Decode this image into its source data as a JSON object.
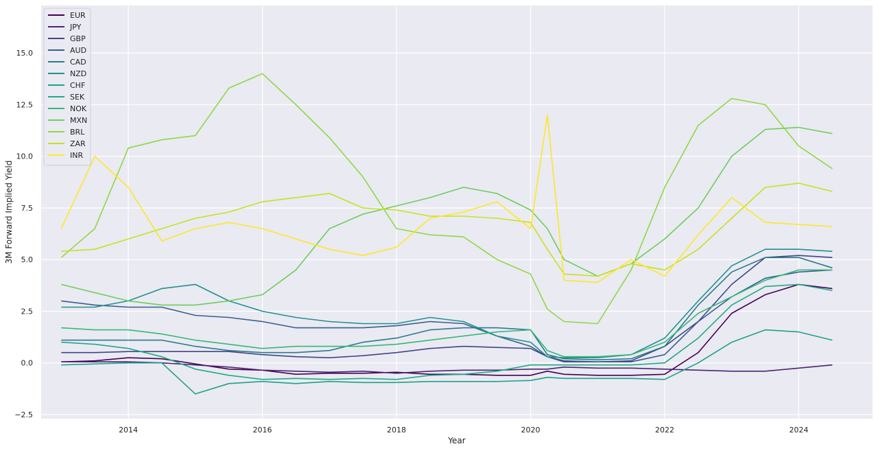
{
  "chart_data": {
    "type": "line",
    "title": "",
    "xlabel": "Year",
    "ylabel": "3M Forward Implied Yield",
    "xlim": [
      2012.7,
      2025.1
    ],
    "ylim": [
      -2.7,
      17.3
    ],
    "x_ticks": [
      2014,
      2016,
      2018,
      2020,
      2022,
      2024
    ],
    "x_tick_labels": [
      "2014",
      "2016",
      "2018",
      "2020",
      "2022",
      "2024"
    ],
    "y_ticks": [
      -2.5,
      0.0,
      2.5,
      5.0,
      7.5,
      10.0,
      12.5,
      15.0
    ],
    "y_tick_labels": [
      "−2.5",
      "0.0",
      "2.5",
      "5.0",
      "7.5",
      "10.0",
      "12.5",
      "15.0"
    ],
    "grid": true,
    "legend_position": "top-left",
    "x": [
      2013.0,
      2013.5,
      2014.0,
      2014.5,
      2015.0,
      2015.5,
      2016.0,
      2016.5,
      2017.0,
      2017.5,
      2018.0,
      2018.5,
      2019.0,
      2019.5,
      2020.0,
      2020.25,
      2020.5,
      2021.0,
      2021.5,
      2022.0,
      2022.5,
      2023.0,
      2023.5,
      2024.0,
      2024.5
    ],
    "series": [
      {
        "name": "EUR",
        "color": "#440154",
        "values": [
          0.05,
          0.1,
          0.25,
          0.2,
          -0.05,
          -0.3,
          -0.35,
          -0.55,
          -0.5,
          -0.5,
          -0.45,
          -0.55,
          -0.55,
          -0.6,
          -0.6,
          -0.4,
          -0.55,
          -0.6,
          -0.6,
          -0.55,
          0.5,
          2.4,
          3.3,
          3.8,
          3.6
        ]
      },
      {
        "name": "JPY",
        "color": "#482475",
        "values": [
          0.05,
          0.05,
          0.05,
          0.0,
          -0.1,
          -0.2,
          -0.35,
          -0.4,
          -0.45,
          -0.4,
          -0.5,
          -0.4,
          -0.35,
          -0.35,
          -0.3,
          -0.3,
          -0.2,
          -0.25,
          -0.25,
          -0.3,
          -0.35,
          -0.4,
          -0.4,
          -0.25,
          -0.1
        ]
      },
      {
        "name": "GBP",
        "color": "#414487",
        "values": [
          0.5,
          0.5,
          0.55,
          0.55,
          0.55,
          0.55,
          0.4,
          0.3,
          0.25,
          0.35,
          0.5,
          0.7,
          0.8,
          0.75,
          0.7,
          0.3,
          0.05,
          0.05,
          0.1,
          0.8,
          2.0,
          3.8,
          5.1,
          5.2,
          5.1
        ]
      },
      {
        "name": "AUD",
        "color": "#355f8d",
        "values": [
          3.0,
          2.8,
          2.7,
          2.7,
          2.3,
          2.2,
          2.0,
          1.7,
          1.7,
          1.7,
          1.8,
          2.0,
          1.9,
          1.3,
          0.8,
          0.3,
          0.1,
          0.05,
          0.05,
          0.4,
          2.0,
          3.2,
          4.1,
          4.4,
          4.5
        ]
      },
      {
        "name": "CAD",
        "color": "#2a788e",
        "values": [
          1.1,
          1.1,
          1.1,
          1.1,
          0.8,
          0.6,
          0.5,
          0.5,
          0.6,
          1.0,
          1.2,
          1.6,
          1.7,
          1.7,
          1.6,
          0.4,
          0.2,
          0.15,
          0.2,
          0.8,
          2.8,
          4.4,
          5.1,
          5.1,
          4.6
        ]
      },
      {
        "name": "NZD",
        "color": "#21918c",
        "values": [
          2.7,
          2.7,
          3.0,
          3.6,
          3.8,
          3.0,
          2.5,
          2.2,
          2.0,
          1.9,
          1.9,
          2.2,
          2.0,
          1.3,
          1.0,
          0.3,
          0.25,
          0.25,
          0.4,
          1.2,
          3.0,
          4.7,
          5.5,
          5.5,
          5.4
        ]
      },
      {
        "name": "CHF",
        "color": "#1fa088",
        "values": [
          -0.1,
          -0.05,
          0.0,
          0.0,
          -1.5,
          -1.0,
          -0.9,
          -1.0,
          -0.9,
          -0.95,
          -0.95,
          -0.9,
          -0.9,
          -0.9,
          -0.85,
          -0.7,
          -0.75,
          -0.75,
          -0.75,
          -0.8,
          0.0,
          1.0,
          1.6,
          1.5,
          1.1
        ]
      },
      {
        "name": "SEK",
        "color": "#22a884",
        "values": [
          1.0,
          0.9,
          0.7,
          0.3,
          -0.3,
          -0.6,
          -0.8,
          -0.75,
          -0.8,
          -0.75,
          -0.8,
          -0.6,
          -0.55,
          -0.4,
          -0.1,
          -0.1,
          -0.1,
          -0.1,
          -0.1,
          0.0,
          1.2,
          2.8,
          3.7,
          3.8,
          3.5
        ]
      },
      {
        "name": "NOK",
        "color": "#35b779",
        "values": [
          1.7,
          1.6,
          1.6,
          1.4,
          1.1,
          0.9,
          0.7,
          0.8,
          0.8,
          0.8,
          0.9,
          1.1,
          1.3,
          1.5,
          1.6,
          0.6,
          0.3,
          0.3,
          0.4,
          1.0,
          2.4,
          3.2,
          4.0,
          4.5,
          4.5
        ]
      },
      {
        "name": "MXN",
        "color": "#6ccd5a",
        "values": [
          3.8,
          3.4,
          3.0,
          2.8,
          2.8,
          3.0,
          3.3,
          4.5,
          6.5,
          7.2,
          7.6,
          8.0,
          8.5,
          8.2,
          7.4,
          6.5,
          5.0,
          4.2,
          4.8,
          6.0,
          7.5,
          10.0,
          11.3,
          11.4,
          11.1
        ]
      },
      {
        "name": "BRL",
        "color": "#8fd744",
        "values": [
          5.1,
          6.5,
          10.4,
          10.8,
          11.0,
          13.3,
          14.0,
          12.5,
          10.9,
          9.0,
          6.5,
          6.2,
          6.1,
          5.0,
          4.3,
          2.6,
          2.0,
          1.9,
          4.5,
          8.5,
          11.5,
          12.8,
          12.5,
          10.5,
          9.4
        ]
      },
      {
        "name": "ZAR",
        "color": "#c8e020",
        "values": [
          5.4,
          5.5,
          6.0,
          6.5,
          7.0,
          7.3,
          7.8,
          8.0,
          8.2,
          7.5,
          7.4,
          7.1,
          7.1,
          7.0,
          6.8,
          5.5,
          4.3,
          4.2,
          4.8,
          4.5,
          5.5,
          7.0,
          8.5,
          8.7,
          8.3
        ]
      },
      {
        "name": "INR",
        "color": "#fde725",
        "values": [
          6.5,
          10.0,
          8.5,
          5.9,
          6.5,
          6.8,
          6.5,
          6.0,
          5.5,
          5.2,
          5.6,
          7.0,
          7.3,
          7.8,
          6.5,
          12.0,
          4.0,
          3.9,
          5.0,
          4.2,
          6.2,
          8.0,
          6.8,
          6.7,
          6.6
        ]
      }
    ]
  }
}
